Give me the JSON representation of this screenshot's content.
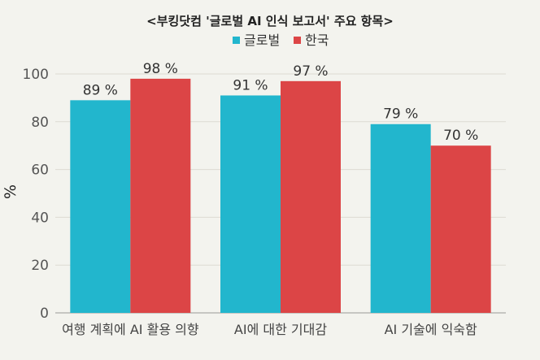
{
  "chart_data": {
    "type": "bar",
    "title": "<부킹닷컴 '글로벌 AI 인식 보고서' 주요 항목>",
    "ylabel": "%",
    "xlabel": "",
    "ylim": [
      0,
      100
    ],
    "yticks": [
      0,
      20,
      40,
      60,
      80,
      100
    ],
    "categories": [
      "여행 계획에 AI 활용 의향",
      "AI에 대한 기대감",
      "AI 기술에 익숙함"
    ],
    "series": [
      {
        "name": "글로벌",
        "values": [
          89,
          91,
          79
        ],
        "labels": [
          "89 %",
          "91 %",
          "79 %"
        ],
        "color": "#22b6cd"
      },
      {
        "name": "한국",
        "values": [
          98,
          97,
          70
        ],
        "labels": [
          "98 %",
          "97 %",
          "70 %"
        ],
        "color": "#dc4546"
      }
    ],
    "legend_position": "top-center",
    "grid": true
  }
}
